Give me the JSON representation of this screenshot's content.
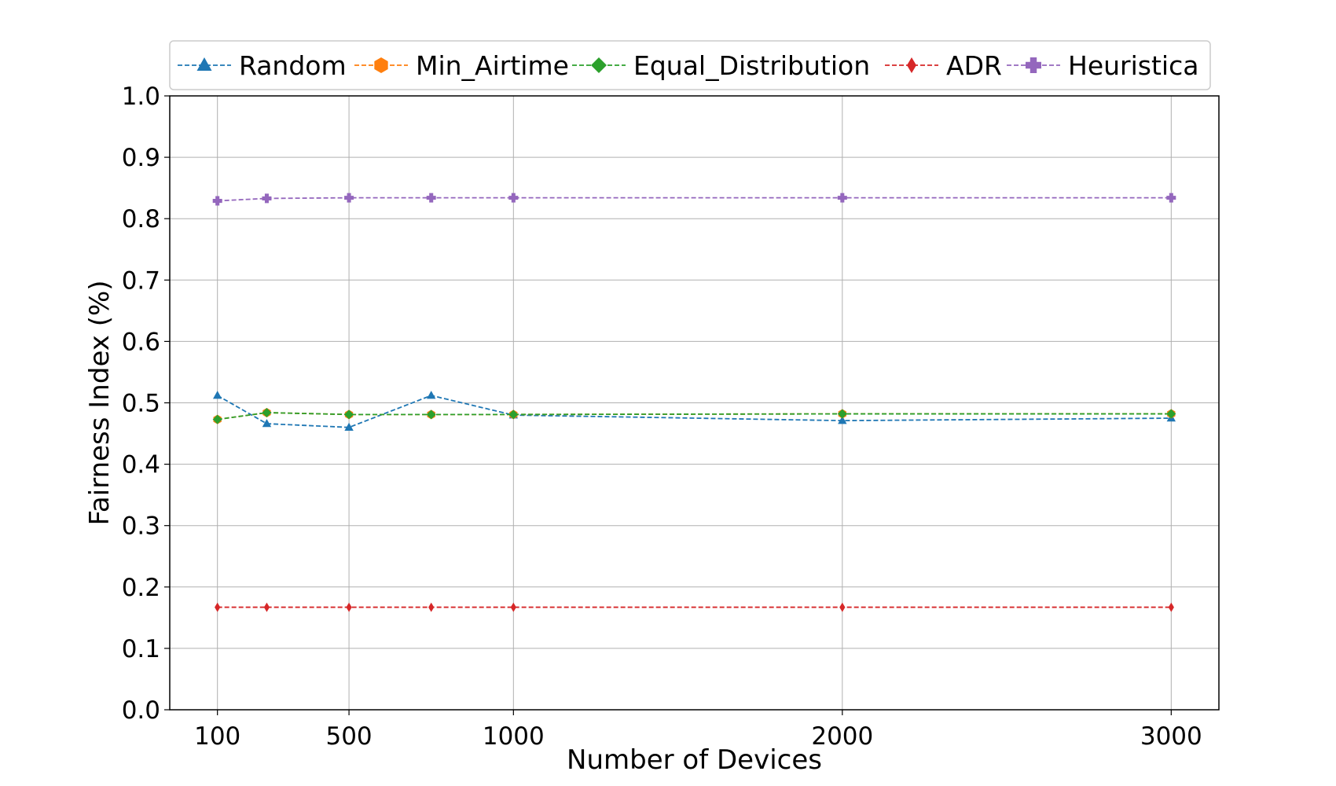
{
  "chart_data": {
    "type": "line",
    "title": "",
    "xlabel": "Number of Devices",
    "ylabel": "Fairness Index (%)",
    "xlim": [
      -45,
      3145
    ],
    "ylim": [
      0.0,
      1.0
    ],
    "xticks": [
      100,
      500,
      1000,
      2000,
      3000
    ],
    "xtick_labels": [
      "100",
      "500",
      "1000",
      "2000",
      "3000"
    ],
    "yticks": [
      0.0,
      0.1,
      0.2,
      0.3,
      0.4,
      0.5,
      0.6,
      0.7,
      0.8,
      0.9,
      1.0
    ],
    "ytick_labels": [
      "0.0",
      "0.1",
      "0.2",
      "0.3",
      "0.4",
      "0.5",
      "0.6",
      "0.7",
      "0.8",
      "0.9",
      "1.0"
    ],
    "grid": true,
    "legend_position": "top",
    "line_style": "dashed",
    "x": [
      100,
      250,
      500,
      750,
      1000,
      2000,
      3000
    ],
    "series": [
      {
        "name": "Random",
        "color": "#1f77b4",
        "marker": "triangle",
        "values": [
          0.512,
          0.466,
          0.46,
          0.512,
          0.48,
          0.471,
          0.475
        ]
      },
      {
        "name": "Min_Airtime",
        "color": "#ff7f0e",
        "marker": "hexagon",
        "values": [
          0.473,
          0.484,
          0.481,
          0.481,
          0.481,
          0.482,
          0.482
        ]
      },
      {
        "name": "Equal_Distribution",
        "color": "#2ca02c",
        "marker": "diamond",
        "values": [
          0.473,
          0.484,
          0.481,
          0.481,
          0.481,
          0.482,
          0.482
        ]
      },
      {
        "name": "ADR",
        "color": "#d62728",
        "marker": "thin-diamond",
        "values": [
          0.167,
          0.167,
          0.167,
          0.167,
          0.167,
          0.167,
          0.167
        ]
      },
      {
        "name": "Heuristica",
        "color": "#9467bd",
        "marker": "plus",
        "values": [
          0.829,
          0.833,
          0.834,
          0.834,
          0.834,
          0.834,
          0.834
        ]
      }
    ]
  }
}
